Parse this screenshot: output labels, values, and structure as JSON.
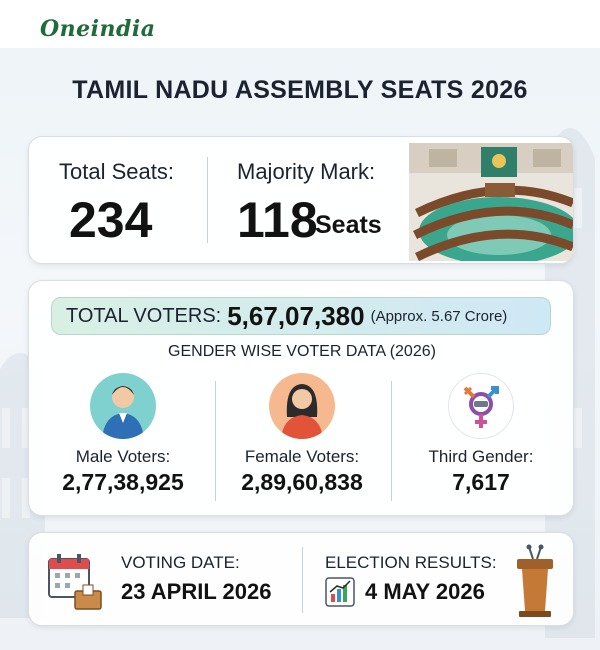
{
  "brand": {
    "logo_text": "Oneindia",
    "accent": "#1f6b3a"
  },
  "title": "TAMIL NADU ASSEMBLY SEATS 2026",
  "seats": {
    "total_label": "Total Seats:",
    "total_value": "234",
    "majority_label": "Majority Mark:",
    "majority_value": "118",
    "majority_unit": "Seats"
  },
  "voters": {
    "label": "TOTAL VOTERS:",
    "value": "5,67,07,380",
    "note": "(Approx. 5.67 Crore)",
    "gender_heading": "GENDER WISE VOTER DATA (2026)",
    "groups": [
      {
        "label": "Male Voters:",
        "value": "2,77,38,925",
        "icon": "male-avatar-icon"
      },
      {
        "label": "Female Voters:",
        "value": "2,89,60,838",
        "icon": "female-avatar-icon"
      },
      {
        "label": "Third Gender:",
        "value": "7,617",
        "icon": "transgender-symbol-icon"
      }
    ]
  },
  "dates": {
    "voting_label": "VOTING DATE:",
    "voting_value": "23 APRIL 2026",
    "results_label": "ELECTION RESULTS:",
    "results_value": "4 MAY 2026"
  }
}
